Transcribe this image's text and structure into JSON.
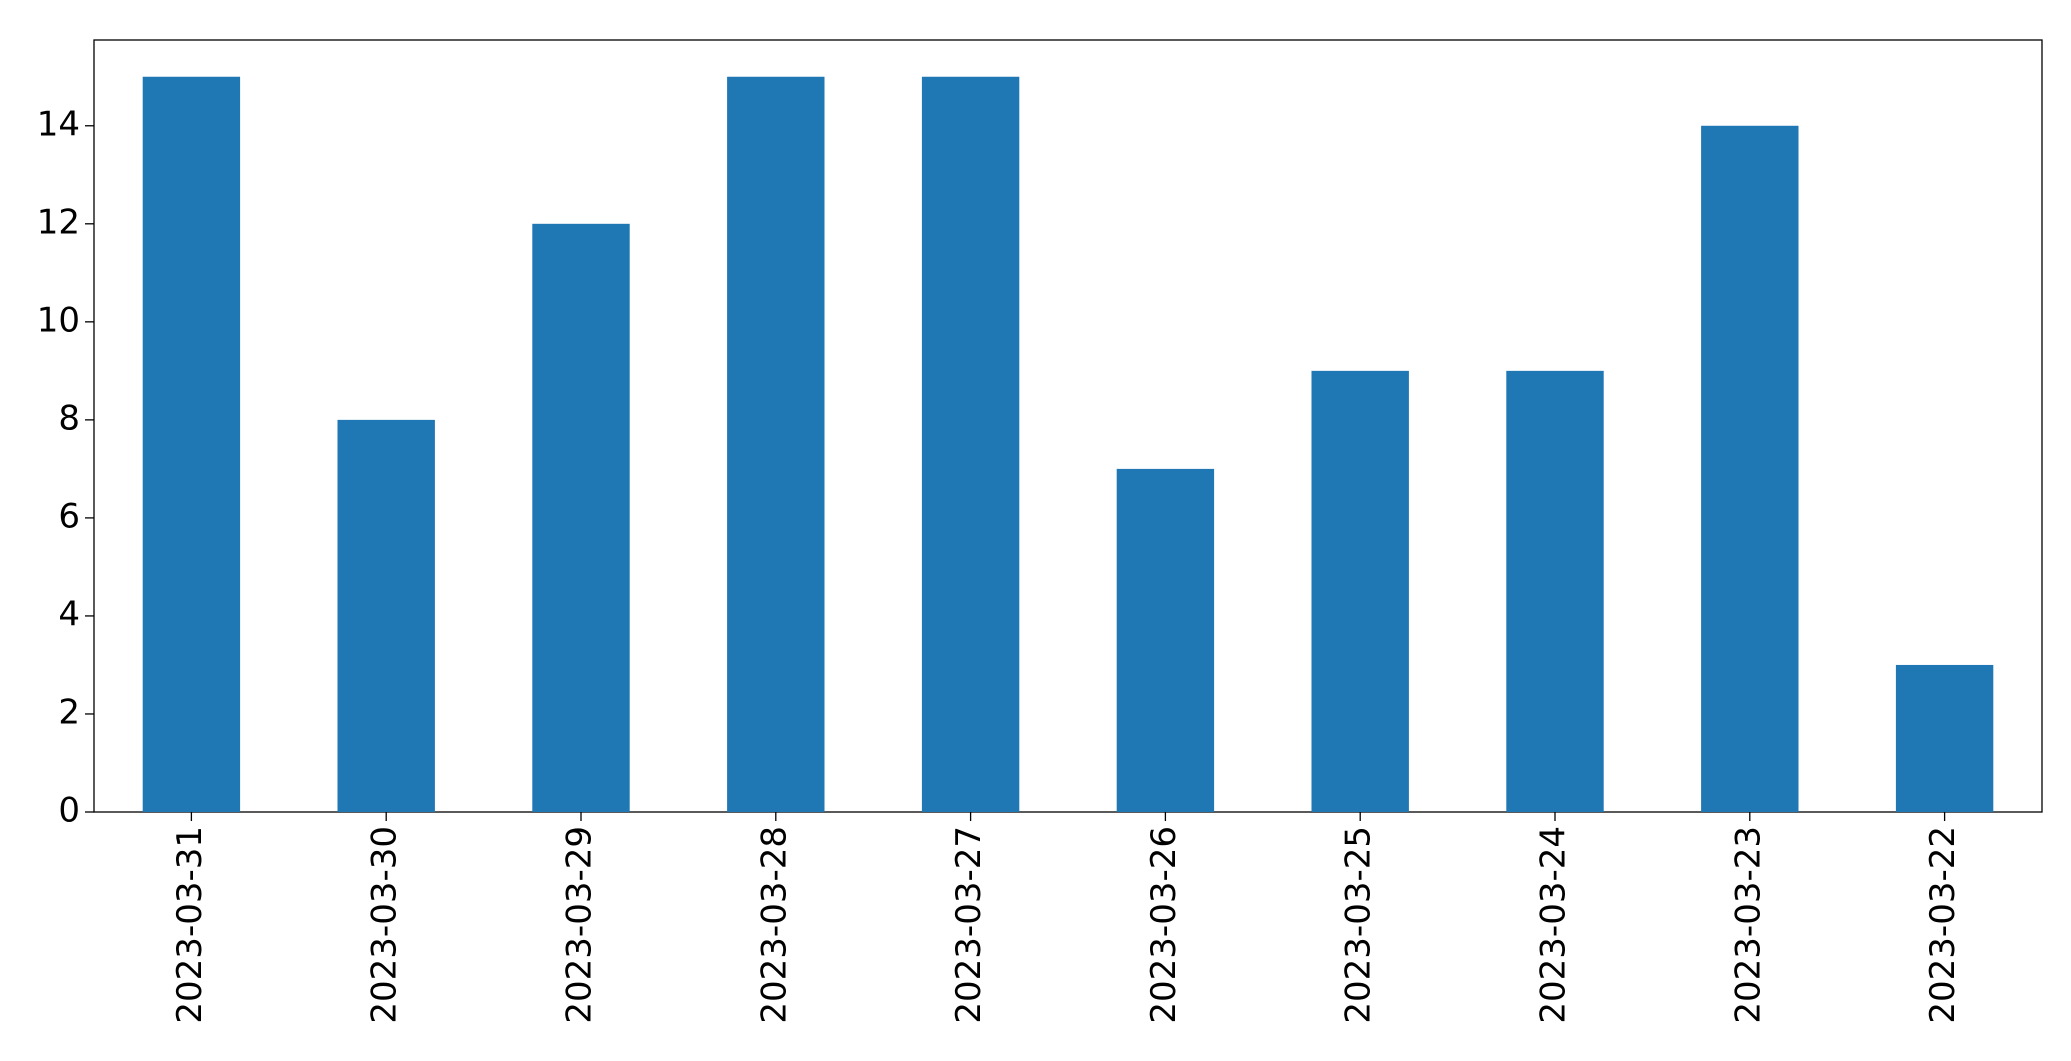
{
  "chart_data": {
    "type": "bar",
    "categories": [
      "2023-03-31",
      "2023-03-30",
      "2023-03-29",
      "2023-03-28",
      "2023-03-27",
      "2023-03-26",
      "2023-03-25",
      "2023-03-24",
      "2023-03-23",
      "2023-03-22"
    ],
    "values": [
      15,
      8,
      12,
      15,
      15,
      7,
      9,
      9,
      14,
      3
    ],
    "color": "#1f77b4",
    "ylim": [
      0,
      15.75
    ],
    "yticks": [
      0,
      2,
      4,
      6,
      8,
      10,
      12,
      14
    ],
    "grid": false
  }
}
